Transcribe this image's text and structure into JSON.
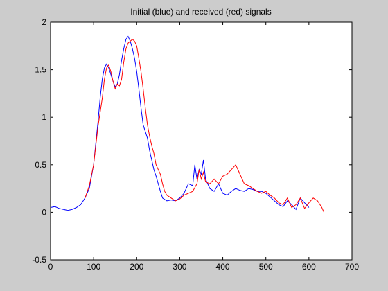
{
  "chart_data": {
    "type": "line",
    "title": "Initial (blue) and received (red) signals",
    "xlabel": "",
    "ylabel": "",
    "xlim": [
      0,
      700
    ],
    "ylim": [
      -0.5,
      2
    ],
    "x_ticks": [
      "0",
      "100",
      "200",
      "300",
      "400",
      "500",
      "600",
      "700"
    ],
    "y_ticks": [
      "-0.5",
      "0",
      "0.5",
      "1",
      "1.5",
      "2"
    ],
    "grid": false,
    "legend": "none",
    "series": [
      {
        "color": "#0000ff",
        "x": [
          0,
          10,
          20,
          30,
          40,
          50,
          60,
          70,
          80,
          90,
          100,
          110,
          115,
          120,
          125,
          130,
          135,
          140,
          145,
          150,
          155,
          160,
          165,
          170,
          175,
          180,
          185,
          190,
          195,
          200,
          205,
          210,
          215,
          220,
          225,
          230,
          235,
          240,
          245,
          250,
          255,
          260,
          270,
          280,
          290,
          300,
          310,
          320,
          330,
          335,
          340,
          345,
          350,
          355,
          360,
          370,
          380,
          390,
          400,
          410,
          420,
          430,
          440,
          450,
          460,
          470,
          480,
          490,
          500,
          510,
          520,
          530,
          540,
          550,
          560,
          570,
          580,
          590,
          600
        ],
        "y": [
          0.05,
          0.06,
          0.04,
          0.03,
          0.02,
          0.03,
          0.05,
          0.08,
          0.15,
          0.25,
          0.5,
          0.95,
          1.2,
          1.4,
          1.52,
          1.56,
          1.52,
          1.45,
          1.38,
          1.32,
          1.35,
          1.45,
          1.6,
          1.72,
          1.82,
          1.85,
          1.8,
          1.72,
          1.62,
          1.48,
          1.3,
          1.1,
          0.92,
          0.85,
          0.78,
          0.65,
          0.55,
          0.45,
          0.38,
          0.3,
          0.22,
          0.15,
          0.12,
          0.13,
          0.12,
          0.15,
          0.2,
          0.3,
          0.28,
          0.5,
          0.35,
          0.45,
          0.4,
          0.55,
          0.35,
          0.25,
          0.22,
          0.3,
          0.2,
          0.18,
          0.22,
          0.25,
          0.23,
          0.22,
          0.25,
          0.24,
          0.22,
          0.22,
          0.2,
          0.16,
          0.12,
          0.08,
          0.06,
          0.12,
          0.08,
          0.03,
          0.15,
          0.1,
          0.05
        ]
      },
      {
        "color": "#ff0000",
        "x": [
          80,
          90,
          100,
          110,
          120,
          125,
          130,
          135,
          140,
          145,
          150,
          155,
          160,
          165,
          170,
          175,
          180,
          185,
          190,
          195,
          200,
          205,
          210,
          215,
          220,
          225,
          230,
          235,
          240,
          245,
          250,
          255,
          260,
          265,
          270,
          280,
          290,
          300,
          310,
          320,
          330,
          340,
          345,
          350,
          355,
          360,
          370,
          380,
          390,
          400,
          410,
          420,
          430,
          440,
          450,
          460,
          470,
          480,
          490,
          500,
          510,
          520,
          530,
          540,
          550,
          560,
          570,
          580,
          590,
          600,
          610,
          620,
          630,
          635
        ],
        "y": [
          0.15,
          0.28,
          0.5,
          0.9,
          1.2,
          1.4,
          1.52,
          1.55,
          1.48,
          1.38,
          1.3,
          1.35,
          1.33,
          1.4,
          1.58,
          1.72,
          1.78,
          1.8,
          1.82,
          1.8,
          1.75,
          1.62,
          1.48,
          1.3,
          1.1,
          0.92,
          0.8,
          0.7,
          0.62,
          0.5,
          0.45,
          0.4,
          0.3,
          0.22,
          0.18,
          0.15,
          0.12,
          0.14,
          0.18,
          0.2,
          0.22,
          0.3,
          0.45,
          0.35,
          0.42,
          0.32,
          0.3,
          0.35,
          0.3,
          0.38,
          0.4,
          0.45,
          0.5,
          0.4,
          0.3,
          0.28,
          0.25,
          0.22,
          0.2,
          0.22,
          0.18,
          0.15,
          0.1,
          0.08,
          0.15,
          0.05,
          0.08,
          0.15,
          0.04,
          0.1,
          0.15,
          0.12,
          0.05,
          0.0
        ]
      }
    ]
  }
}
